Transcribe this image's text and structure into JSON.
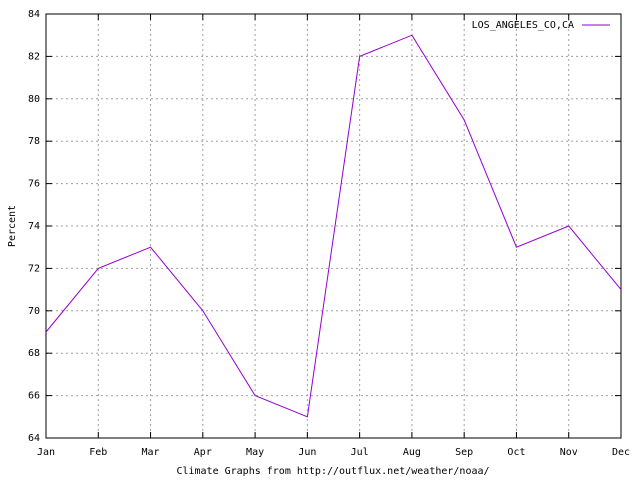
{
  "chart_data": {
    "type": "line",
    "categories": [
      "Jan",
      "Feb",
      "Mar",
      "Apr",
      "May",
      "Jun",
      "Jul",
      "Aug",
      "Sep",
      "Oct",
      "Nov",
      "Dec"
    ],
    "series": [
      {
        "name": "LOS_ANGELES_CO,CA",
        "color": "#9400d3",
        "values": [
          69,
          72,
          73,
          70,
          66,
          65,
          82,
          83,
          79,
          73,
          74,
          71
        ]
      }
    ],
    "ylabel": "Percent",
    "xlabel": "Climate Graphs from http://outflux.net/weather/noaa/",
    "ylim": [
      64,
      84
    ],
    "yticks": [
      64,
      66,
      68,
      70,
      72,
      74,
      76,
      78,
      80,
      82,
      84
    ],
    "grid": true,
    "legend": "upper right"
  }
}
